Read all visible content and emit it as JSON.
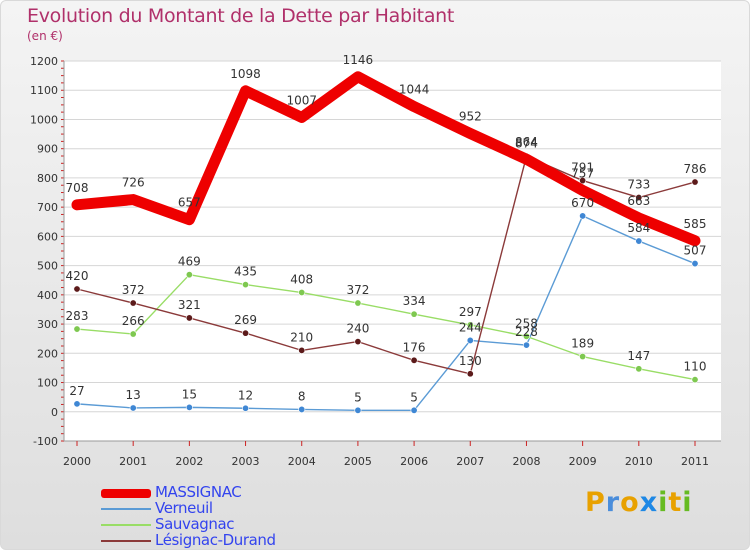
{
  "title": "Evolution du Montant de la Dette par Habitant",
  "subtitle": "(en €)",
  "logo": {
    "text": "Proxiti",
    "letters": [
      "P",
      "r",
      "o",
      "x",
      "i",
      "t",
      "i"
    ],
    "colors": [
      "#e8a100",
      "#4a8ddb",
      "#e8a100",
      "#1e88e5",
      "#66bb22",
      "#e8a100",
      "#66bb22"
    ]
  },
  "chart_data": {
    "type": "line",
    "x": [
      "2000",
      "2001",
      "2002",
      "2003",
      "2004",
      "2005",
      "2006",
      "2007",
      "2008",
      "2009",
      "2010",
      "2011"
    ],
    "ylim": [
      -100,
      1200
    ],
    "yticks": [
      -100,
      0,
      100,
      200,
      300,
      400,
      500,
      600,
      700,
      800,
      900,
      1000,
      1100,
      1200
    ],
    "grid": "horizontal",
    "legend_position": "bottom-left",
    "series": [
      {
        "name": "Verneuil",
        "color": "#5b9bd5",
        "marker": "#3f87d4",
        "labelColor": "#333333",
        "values": [
          27,
          13,
          15,
          12,
          8,
          5,
          5,
          244,
          228,
          670,
          584,
          507
        ]
      },
      {
        "name": "Sauvagnac",
        "color": "#99dd66",
        "marker": "#7ec850",
        "labelColor": "#333333",
        "values": [
          283,
          266,
          469,
          435,
          408,
          372,
          334,
          297,
          258,
          189,
          147,
          110
        ]
      },
      {
        "name": "Lésignac-Durand",
        "color": "#8b3a3a",
        "marker": "#5c1a1a",
        "labelColor": "#333333",
        "values": [
          420,
          372,
          321,
          269,
          210,
          240,
          176,
          130,
          874,
          791,
          733,
          786
        ]
      },
      {
        "name": "MASSIGNAC",
        "color": "#ee0000",
        "marker": "#ee0000",
        "labelColor": "#333333",
        "values": [
          708,
          726,
          657,
          1098,
          1007,
          1146,
          1044,
          952,
          864,
          757,
          663,
          585
        ]
      }
    ],
    "legend_order": [
      "MASSIGNAC",
      "Verneuil",
      "Sauvagnac",
      "Lésignac-Durand"
    ],
    "legend_colors": {
      "MASSIGNAC": "#3344ee",
      "Verneuil": "#3344ee",
      "Sauvagnac": "#3344ee",
      "Lésignac-Durand": "#3344ee"
    }
  }
}
